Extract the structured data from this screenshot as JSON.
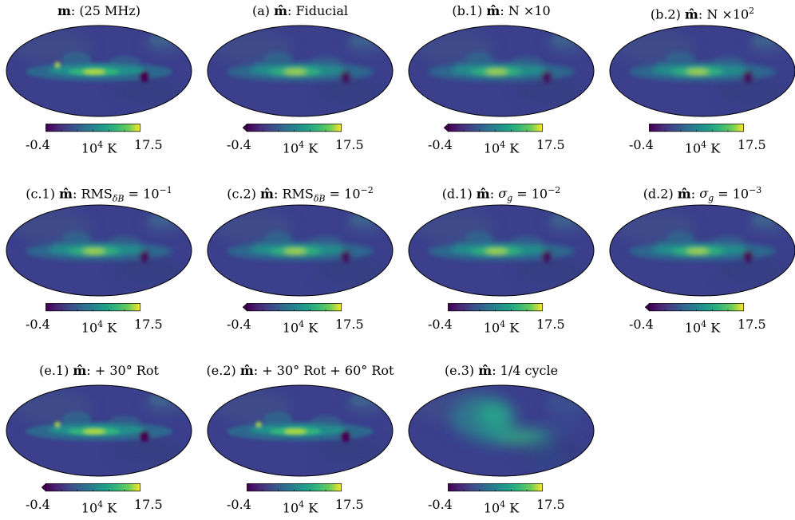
{
  "figure": {
    "colormap": "viridis",
    "colors": {
      "low": "#440154",
      "mid": "#21918c",
      "high": "#fde725",
      "background": "#3b3f8c"
    },
    "panels": [
      {
        "id": "m",
        "label_html": "<b>m</b>: (25 MHz)",
        "title": "m: (25 MHz)",
        "variant": "sharp",
        "cbar_extend_min": false,
        "cbar": {
          "min": "-0.4",
          "unit_base": "10",
          "unit_exp": "4",
          "unit_suffix": " K",
          "max": "17.5"
        }
      },
      {
        "id": "a",
        "label_html": "(a) <b>m̂</b>: Fiducial",
        "title": "(a) m̂: Fiducial",
        "variant": "smooth",
        "cbar_extend_min": true,
        "cbar": {
          "min": "-0.4",
          "unit_base": "10",
          "unit_exp": "4",
          "unit_suffix": " K",
          "max": "17.5"
        }
      },
      {
        "id": "b1",
        "label_html": "(b.1) <b>m̂</b>: N ×10",
        "title": "(b.1) m̂: N ×10",
        "variant": "smooth",
        "cbar_extend_min": true,
        "cbar": {
          "min": "-0.4",
          "unit_base": "10",
          "unit_exp": "4",
          "unit_suffix": " K",
          "max": "17.5"
        }
      },
      {
        "id": "b2",
        "label_html": "(b.2) <b>m̂</b>: N ×10<sup>2</sup>",
        "title": "(b.2) m̂: N ×10^2",
        "variant": "smooth",
        "cbar_extend_min": false,
        "cbar": {
          "min": "-0.4",
          "unit_base": "10",
          "unit_exp": "4",
          "unit_suffix": " K",
          "max": "17.5"
        }
      },
      {
        "id": "c1",
        "label_html": "(c.1) <b>m̂</b>: RMS<sub><i>δB</i></sub> = 10<sup>−1</sup>",
        "title": "(c.1) m̂: RMS_δB = 10^-1",
        "variant": "smooth",
        "cbar_extend_min": false,
        "cbar": {
          "min": "-0.4",
          "unit_base": "10",
          "unit_exp": "4",
          "unit_suffix": " K",
          "max": "17.5"
        }
      },
      {
        "id": "c2",
        "label_html": "(c.2) <b>m̂</b>: RMS<sub><i>δB</i></sub> = 10<sup>−2</sup>",
        "title": "(c.2) m̂: RMS_δB = 10^-2",
        "variant": "smooth",
        "cbar_extend_min": true,
        "cbar": {
          "min": "-0.4",
          "unit_base": "10",
          "unit_exp": "4",
          "unit_suffix": " K",
          "max": "17.5"
        }
      },
      {
        "id": "d1",
        "label_html": "(d.1) <b>m̂</b>: <i>σ<sub>g</sub></i> = 10<sup>−2</sup>",
        "title": "(d.1) m̂: σ_g = 10^-2",
        "variant": "smooth",
        "cbar_extend_min": false,
        "cbar": {
          "min": "-0.4",
          "unit_base": "10",
          "unit_exp": "4",
          "unit_suffix": " K",
          "max": "17.5"
        }
      },
      {
        "id": "d2",
        "label_html": "(d.2) <b>m̂</b>: <i>σ<sub>g</sub></i> = 10<sup>−3</sup>",
        "title": "(d.2) m̂: σ_g = 10^-3",
        "variant": "smooth",
        "cbar_extend_min": true,
        "cbar": {
          "min": "-0.4",
          "unit_base": "10",
          "unit_exp": "4",
          "unit_suffix": " K",
          "max": "17.5"
        }
      },
      {
        "id": "e1",
        "label_html": "(e.1) <b>m̂</b>: + 30° Rot",
        "title": "(e.1) m̂: + 30° Rot",
        "variant": "sharp",
        "cbar_extend_min": true,
        "cbar": {
          "min": "-0.4",
          "unit_base": "10",
          "unit_exp": "4",
          "unit_suffix": " K",
          "max": "17.5"
        }
      },
      {
        "id": "e2",
        "label_html": "(e.2) <b>m̂</b>: + 30° Rot + 60° Rot",
        "title": "(e.2) m̂: + 30° Rot + 60° Rot",
        "variant": "sharp",
        "cbar_extend_min": false,
        "cbar": {
          "min": "-0.4",
          "unit_base": "10",
          "unit_exp": "4",
          "unit_suffix": " K",
          "max": "17.5"
        }
      },
      {
        "id": "e3",
        "label_html": "(e.3) <b>m̂</b>: 1/4 cycle",
        "title": "(e.3) m̂: 1/4 cycle",
        "variant": "broad",
        "cbar_extend_min": false,
        "cbar": {
          "min": "-0.4",
          "unit_base": "10",
          "unit_exp": "4",
          "unit_suffix": " K",
          "max": "17.5"
        }
      }
    ]
  }
}
